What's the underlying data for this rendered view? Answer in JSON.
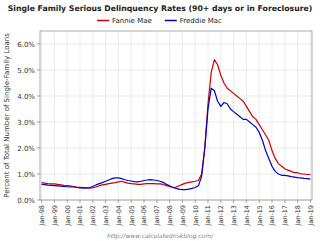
{
  "chart_data": {
    "type": "line",
    "title": "Single Family Serious Delinquency Rates (90+ days or in Foreclosure)",
    "y_label": "Percent of Total Number of Single-Family Loans",
    "annotations": [
      "http://www.calculatedriskblog.com/"
    ],
    "categories": [
      "Jan-98",
      null,
      null,
      null,
      "Jan-99",
      null,
      null,
      null,
      "Jan-00",
      null,
      null,
      null,
      "Jan-01",
      null,
      null,
      null,
      "Jan-02",
      null,
      null,
      null,
      "Jan-03",
      null,
      null,
      null,
      "Jan-04",
      null,
      null,
      null,
      "Jan-05",
      null,
      null,
      null,
      "Jan-06",
      null,
      null,
      null,
      "Jan-07",
      null,
      null,
      null,
      "Jan-08",
      null,
      null,
      null,
      "Jan-09",
      null,
      null,
      null,
      "Jan-10",
      null,
      null,
      null,
      "Jan-11",
      null,
      null,
      null,
      "Jan-12",
      null,
      null,
      null,
      "Jan-13",
      null,
      null,
      null,
      "Jan-14",
      null,
      null,
      null,
      "Jan-15",
      null,
      null,
      null,
      "Jan-16",
      null,
      null,
      null,
      "Jan-17",
      null,
      null,
      null,
      "Jan-18",
      null,
      null,
      null,
      "Jan-19"
    ],
    "series": [
      {
        "name": "Fannie Mae",
        "color": "#cc0000",
        "values": [
          0.0067,
          0.0065,
          0.0063,
          0.0062,
          0.0062,
          0.006,
          0.0058,
          0.0056,
          0.0055,
          0.0054,
          0.0052,
          0.005,
          0.0049,
          0.0048,
          0.0047,
          0.0046,
          0.0047,
          0.005,
          0.0055,
          0.0058,
          0.006,
          0.0063,
          0.0065,
          0.0067,
          0.007,
          0.0072,
          0.0068,
          0.0065,
          0.0063,
          0.0062,
          0.006,
          0.006,
          0.0062,
          0.0063,
          0.0063,
          0.0063,
          0.0062,
          0.0062,
          0.006,
          0.0055,
          0.0052,
          0.0048,
          0.005,
          0.0055,
          0.006,
          0.0065,
          0.0068,
          0.007,
          0.0072,
          0.0075,
          0.01,
          0.02,
          0.037,
          0.049,
          0.054,
          0.052,
          0.048,
          0.045,
          0.043,
          0.042,
          0.041,
          0.04,
          0.039,
          0.038,
          0.036,
          0.034,
          0.032,
          0.031,
          0.029,
          0.027,
          0.025,
          0.023,
          0.019,
          0.016,
          0.014,
          0.013,
          0.012,
          0.0115,
          0.011,
          0.0105,
          0.0105,
          0.01,
          0.01,
          0.0098,
          0.0098
        ]
      },
      {
        "name": "Freddie Mac",
        "color": "#0000cc",
        "values": [
          0.006,
          0.0059,
          0.0057,
          0.0056,
          0.0055,
          0.0054,
          0.0053,
          0.0052,
          0.0051,
          0.005,
          0.005,
          0.0048,
          0.0047,
          0.0046,
          0.0047,
          0.0048,
          0.0052,
          0.0058,
          0.0063,
          0.0067,
          0.0072,
          0.0077,
          0.0082,
          0.0085,
          0.0085,
          0.0082,
          0.0078,
          0.0075,
          0.0073,
          0.0071,
          0.007,
          0.0072,
          0.0075,
          0.0077,
          0.0078,
          0.0077,
          0.0075,
          0.0072,
          0.0068,
          0.006,
          0.0055,
          0.0048,
          0.0045,
          0.0042,
          0.004,
          0.004,
          0.0042,
          0.0045,
          0.0048,
          0.0055,
          0.009,
          0.02,
          0.035,
          0.043,
          0.042,
          0.038,
          0.036,
          0.0375,
          0.037,
          0.035,
          0.034,
          0.033,
          0.032,
          0.031,
          0.031,
          0.03,
          0.029,
          0.028,
          0.026,
          0.023,
          0.019,
          0.016,
          0.013,
          0.011,
          0.01,
          0.0095,
          0.0095,
          0.0093,
          0.009,
          0.0088,
          0.0086,
          0.0085,
          0.0083,
          0.0082,
          0.008
        ]
      }
    ],
    "ylim": [
      0.0,
      0.065
    ],
    "yticks": [
      {
        "value": 0.0,
        "label": "0.0%"
      },
      {
        "value": 0.01,
        "label": "1.0%"
      },
      {
        "value": 0.02,
        "label": "2.0%"
      },
      {
        "value": 0.03,
        "label": "3.0%"
      },
      {
        "value": 0.04,
        "label": "4.0%"
      },
      {
        "value": 0.05,
        "label": "5.0%"
      },
      {
        "value": 0.06,
        "label": "6.0%"
      }
    ],
    "grid": true,
    "legend": "top"
  }
}
